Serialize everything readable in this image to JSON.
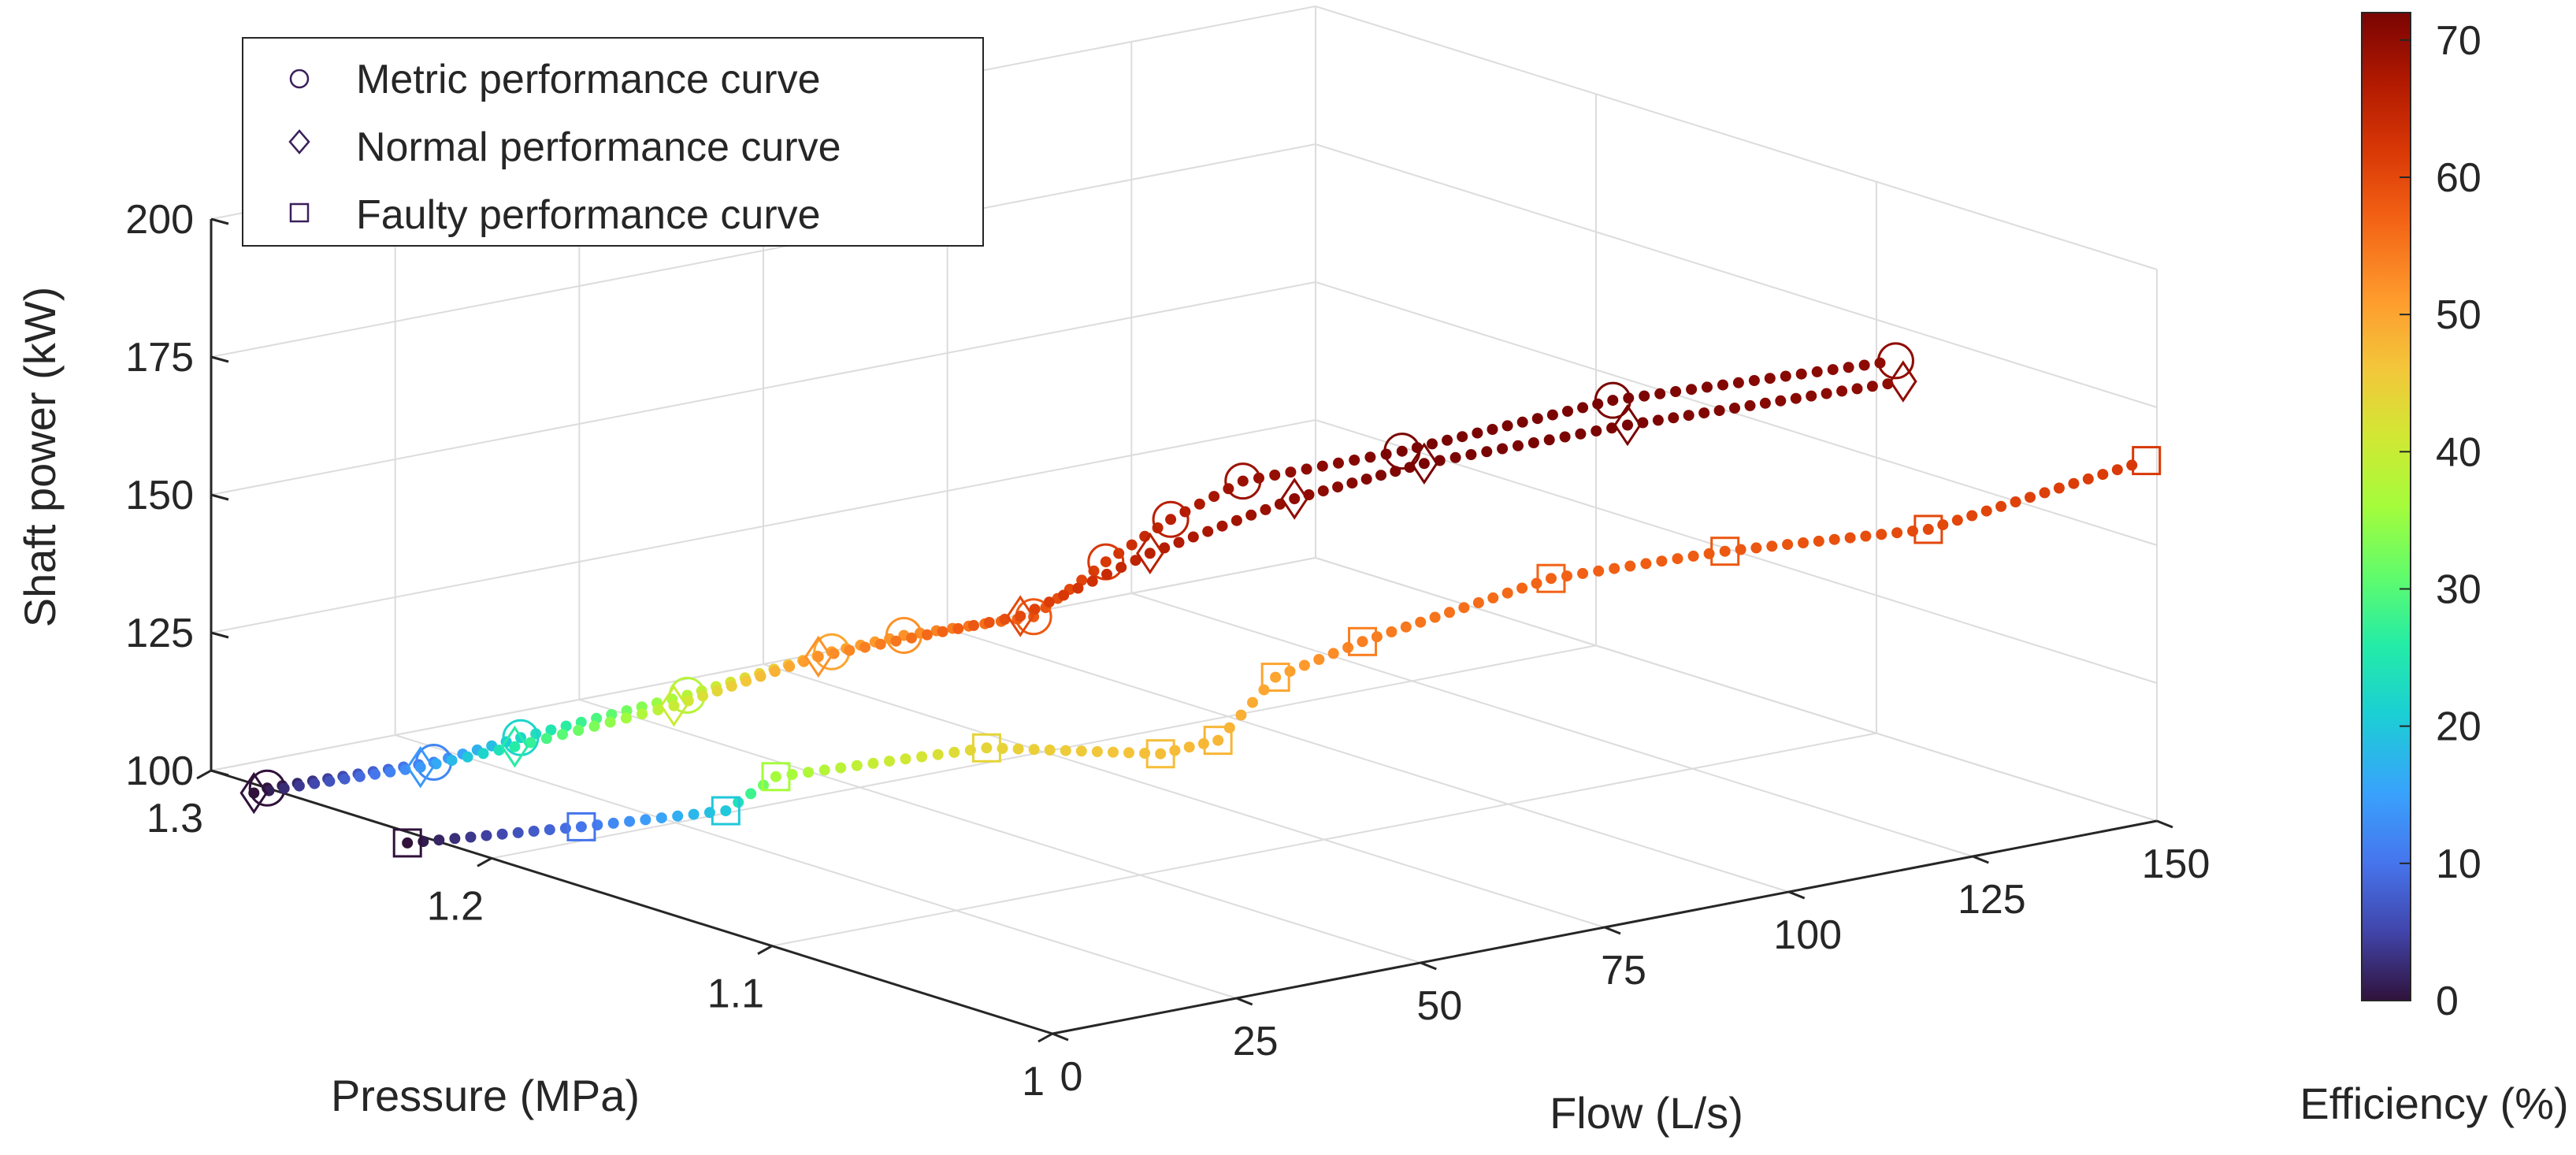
{
  "chart_data": {
    "type": "scatter3d",
    "title": "",
    "xlabel": "Pressure (MPa)",
    "ylabel": "Flow (L/s)",
    "zlabel": "Shaft power (kW)",
    "colorbar_label": "Efficiency (%)",
    "xlim": [
      1.0,
      1.3
    ],
    "ylim": [
      0,
      150
    ],
    "zlim": [
      100,
      200
    ],
    "clim": [
      0,
      72
    ],
    "x_ticks": [
      1.3,
      1.2,
      1.1,
      1
    ],
    "x_tick_labels": [
      "1.3",
      "1.2",
      "1.1",
      "1"
    ],
    "y_ticks": [
      0,
      25,
      50,
      75,
      100,
      125,
      150
    ],
    "y_tick_labels": [
      "0",
      "25",
      "50",
      "75",
      "100",
      "125",
      "150"
    ],
    "z_ticks": [
      100,
      125,
      150,
      175,
      200
    ],
    "z_tick_labels": [
      "100",
      "125",
      "150",
      "175",
      "200"
    ],
    "colorbar_ticks": [
      0,
      10,
      20,
      30,
      40,
      50,
      60,
      70
    ],
    "colorbar_tick_labels": [
      "0",
      "10",
      "20",
      "30",
      "40",
      "50",
      "60",
      "70"
    ],
    "grid": true,
    "legend_position": "top-left",
    "legend": [
      "Metric performance curve",
      "Normal performance curve",
      "Faulty performance curve"
    ],
    "series": [
      {
        "name": "Metric performance curve",
        "marker": "circle",
        "points": [
          {
            "pressure": 1.28,
            "flow": 0,
            "power": 100,
            "efficiency": 0
          },
          {
            "pressure": 1.26,
            "flow": 15,
            "power": 104,
            "efficiency": 12
          },
          {
            "pressure": 1.25,
            "flow": 23,
            "power": 108,
            "efficiency": 22
          },
          {
            "pressure": 1.23,
            "flow": 38,
            "power": 115,
            "efficiency": 38
          },
          {
            "pressure": 1.21,
            "flow": 50,
            "power": 123,
            "efficiency": 50
          },
          {
            "pressure": 1.2,
            "flow": 56,
            "power": 126,
            "efficiency": 52
          },
          {
            "pressure": 1.18,
            "flow": 66,
            "power": 130,
            "efficiency": 58
          },
          {
            "pressure": 1.17,
            "flow": 72,
            "power": 140,
            "efficiency": 62
          },
          {
            "pressure": 1.16,
            "flow": 77,
            "power": 148,
            "efficiency": 66
          },
          {
            "pressure": 1.15,
            "flow": 83,
            "power": 155,
            "efficiency": 69
          },
          {
            "pressure": 1.13,
            "flow": 97,
            "power": 160,
            "efficiency": 72
          },
          {
            "pressure": 1.11,
            "flow": 118,
            "power": 167,
            "efficiency": 72
          },
          {
            "pressure": 1.08,
            "flow": 145,
            "power": 172,
            "efficiency": 70
          }
        ]
      },
      {
        "name": "Normal performance curve",
        "marker": "diamond",
        "points": [
          {
            "pressure": 1.29,
            "flow": 2,
            "power": 97,
            "efficiency": 0
          },
          {
            "pressure": 1.27,
            "flow": 17,
            "power": 101,
            "efficiency": 14
          },
          {
            "pressure": 1.26,
            "flow": 26,
            "power": 104,
            "efficiency": 26
          },
          {
            "pressure": 1.24,
            "flow": 40,
            "power": 111,
            "efficiency": 40
          },
          {
            "pressure": 1.22,
            "flow": 52,
            "power": 120,
            "efficiency": 52
          },
          {
            "pressure": 1.19,
            "flow": 68,
            "power": 128,
            "efficiency": 60
          },
          {
            "pressure": 1.17,
            "flow": 78,
            "power": 140,
            "efficiency": 66
          },
          {
            "pressure": 1.15,
            "flow": 90,
            "power": 150,
            "efficiency": 70
          },
          {
            "pressure": 1.13,
            "flow": 100,
            "power": 157,
            "efficiency": 72
          },
          {
            "pressure": 1.11,
            "flow": 120,
            "power": 162,
            "efficiency": 72
          },
          {
            "pressure": 1.08,
            "flow": 146,
            "power": 168,
            "efficiency": 70
          }
        ]
      },
      {
        "name": "Faulty performance curve",
        "marker": "square",
        "points": [
          {
            "pressure": 1.23,
            "flow": 0,
            "power": 98,
            "efficiency": 0
          },
          {
            "pressure": 1.21,
            "flow": 16,
            "power": 100,
            "efficiency": 10
          },
          {
            "pressure": 1.19,
            "flow": 28,
            "power": 103,
            "efficiency": 20
          },
          {
            "pressure": 1.18,
            "flow": 31,
            "power": 110,
            "efficiency": 36
          },
          {
            "pressure": 1.16,
            "flow": 52,
            "power": 113,
            "efficiency": 44
          },
          {
            "pressure": 1.14,
            "flow": 68,
            "power": 111,
            "efficiency": 47
          },
          {
            "pressure": 1.13,
            "flow": 72,
            "power": 114,
            "efficiency": 48
          },
          {
            "pressure": 1.12,
            "flow": 76,
            "power": 126,
            "efficiency": 50
          },
          {
            "pressure": 1.11,
            "flow": 84,
            "power": 132,
            "efficiency": 54
          },
          {
            "pressure": 1.09,
            "flow": 102,
            "power": 142,
            "efficiency": 57
          },
          {
            "pressure": 1.07,
            "flow": 118,
            "power": 146,
            "efficiency": 58
          },
          {
            "pressure": 1.05,
            "flow": 138,
            "power": 148,
            "efficiency": 60
          },
          {
            "pressure": 1.03,
            "flow": 160,
            "power": 158,
            "efficiency": 62
          }
        ]
      }
    ]
  }
}
